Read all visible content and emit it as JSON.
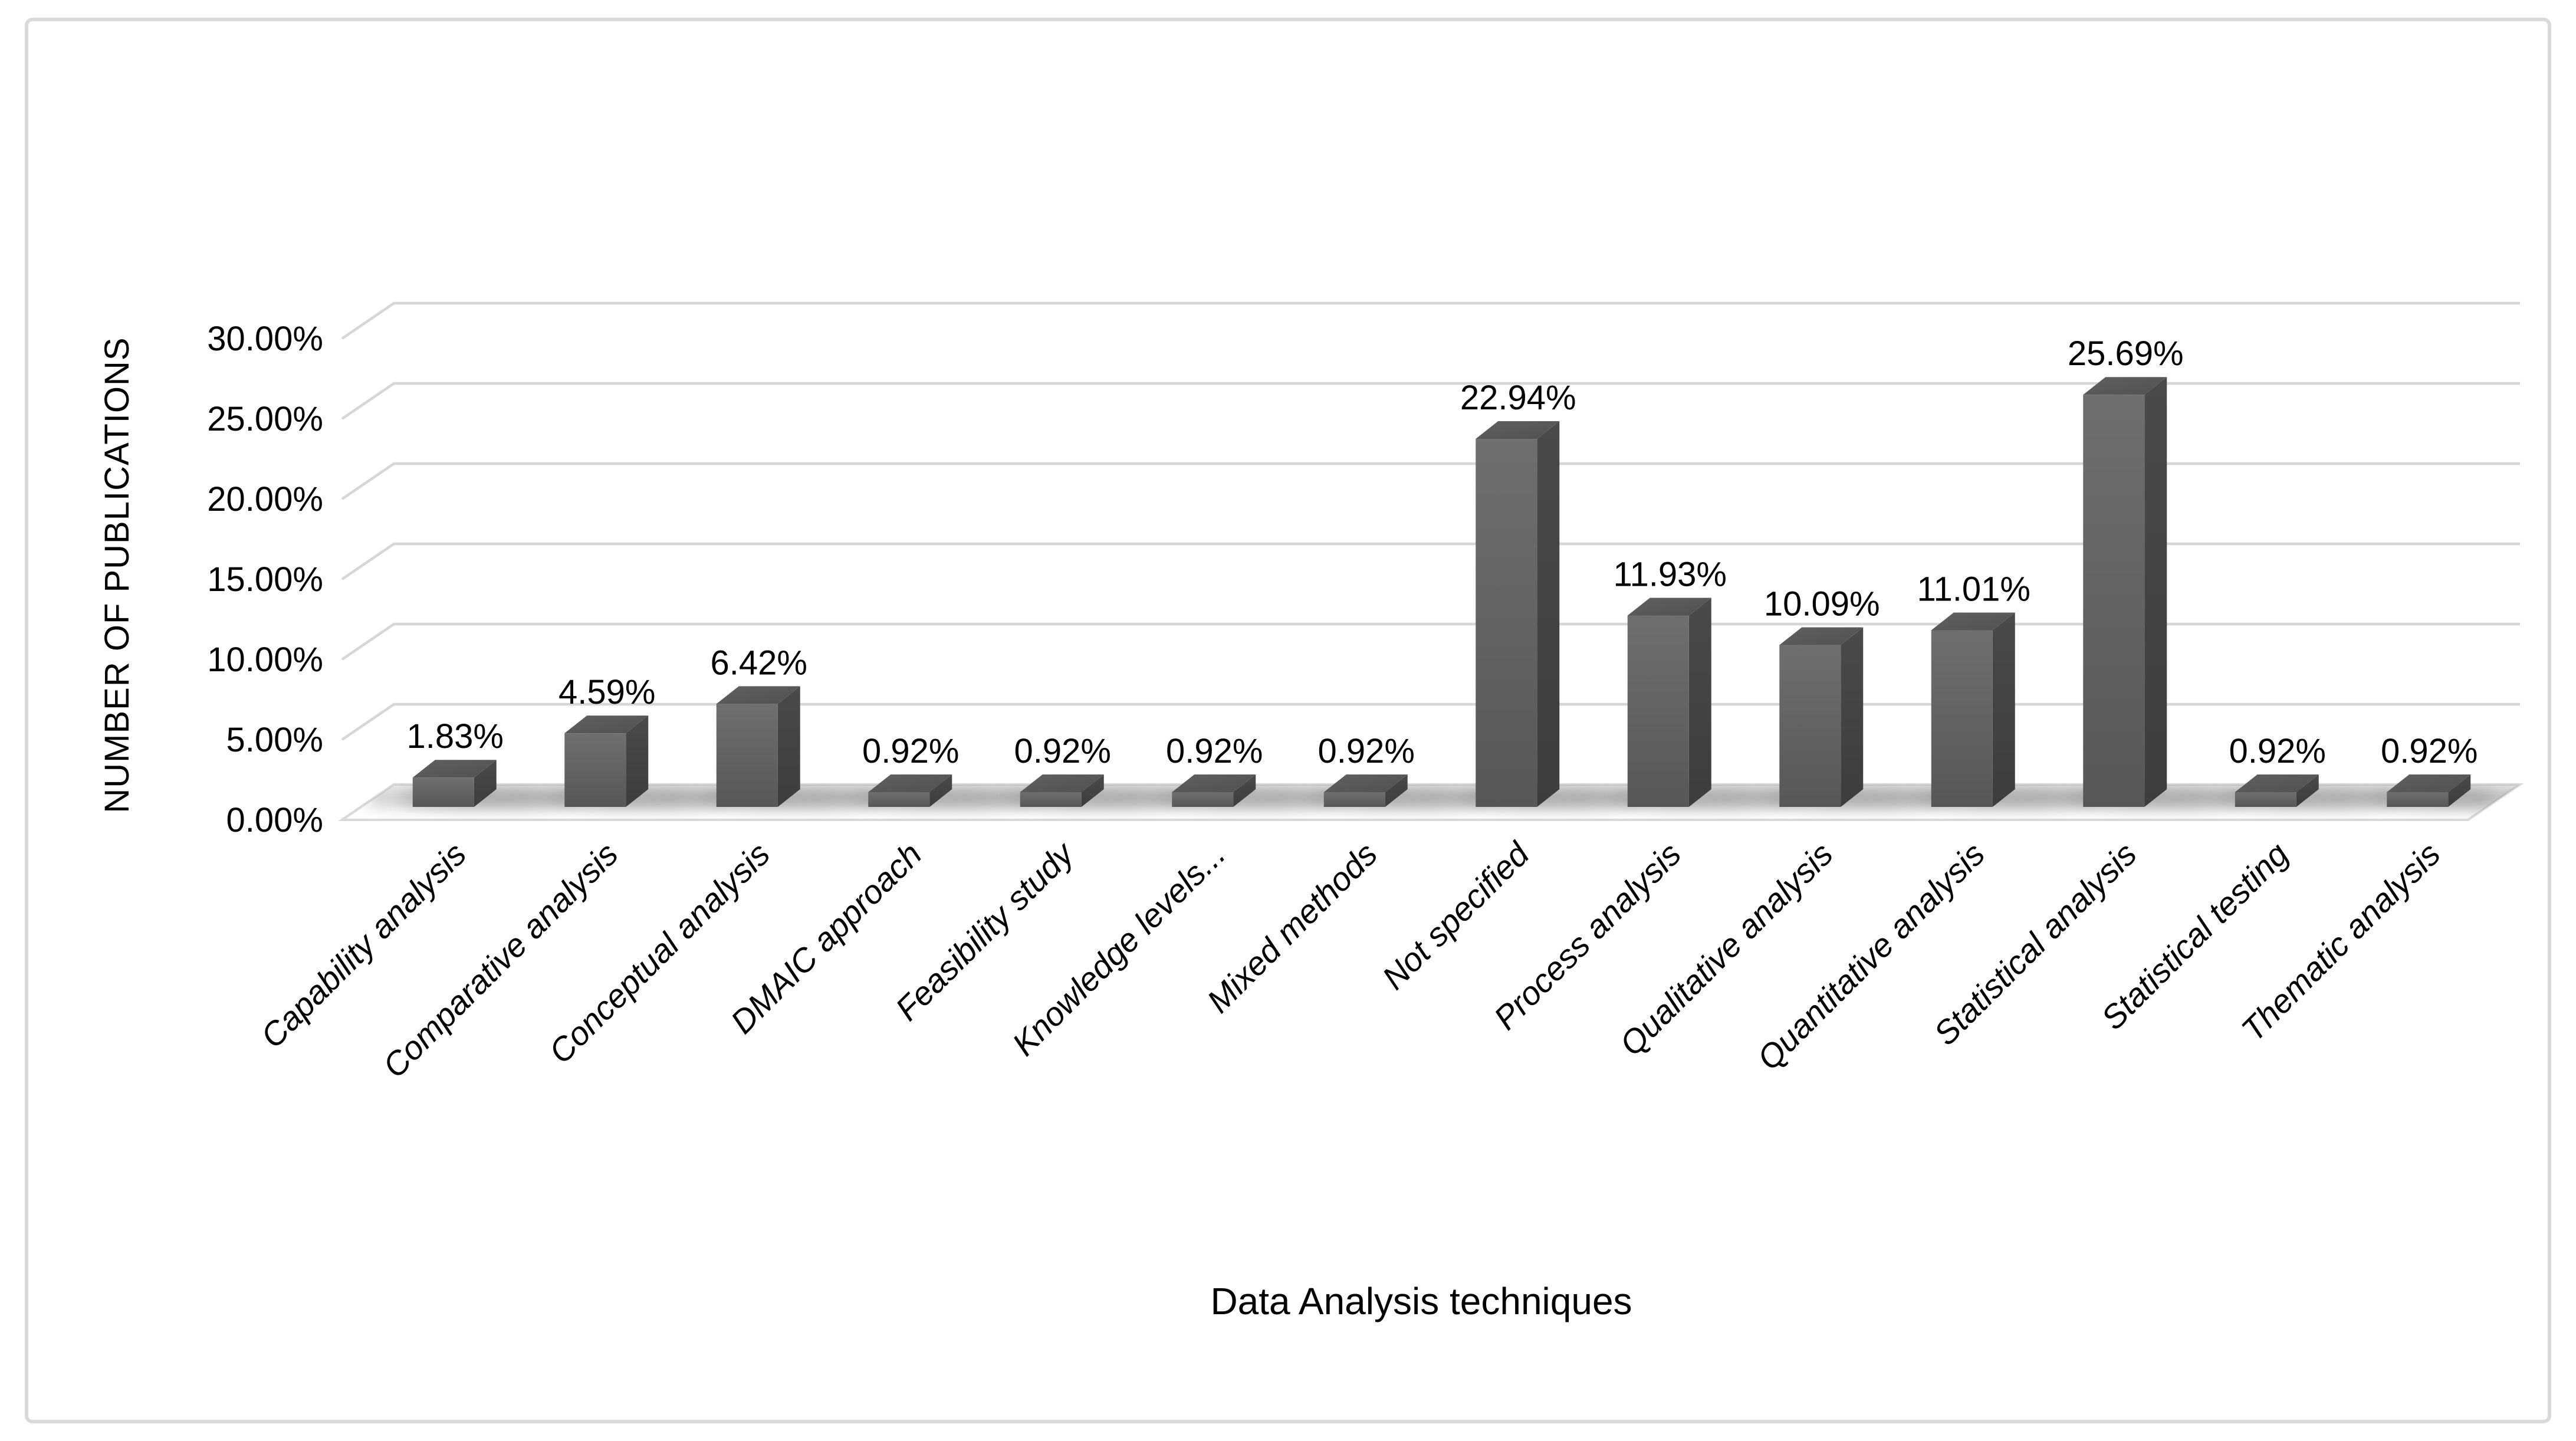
{
  "chart_data": {
    "type": "bar",
    "projection": "3d",
    "title": "",
    "xlabel": "Data Analysis techniques",
    "ylabel": "NUMBER OF PUBLICATIONS",
    "categories": [
      "Capability analysis",
      "Comparative analysis",
      "Conceptual analysis",
      "DMAIC approach",
      "Feasibility study",
      "Knowledge levels...",
      "Mixed methods",
      "Not specified",
      "Process analysis",
      "Qualitative analysis",
      "Quantitative analysis",
      "Statistical analysis",
      "Statistical testing",
      "Thematic analysis"
    ],
    "values": [
      1.83,
      4.59,
      6.42,
      0.92,
      0.92,
      0.92,
      0.92,
      22.94,
      11.93,
      10.09,
      11.01,
      25.69,
      0.92,
      0.92
    ],
    "data_labels": [
      "1.83%",
      "4.59%",
      "6.42%",
      "0.92%",
      "0.92%",
      "0.92%",
      "0.92%",
      "22.94%",
      "11.93%",
      "10.09%",
      "11.01%",
      "25.69%",
      "0.92%",
      "0.92%"
    ],
    "y_ticks": [
      "0.00%",
      "5.00%",
      "10.00%",
      "15.00%",
      "20.00%",
      "25.00%",
      "30.00%"
    ],
    "ylim": [
      0,
      30
    ],
    "y_step": 5,
    "grid": true,
    "legend": false,
    "colors": {
      "bar_front_light": "#6f6f6f",
      "bar_front_dark": "#575757",
      "bar_side_light": "#4a4a4a",
      "bar_side_dark": "#3d3d3d",
      "bar_top_light": "#606060",
      "bar_top_dark": "#525252",
      "gridline": "#d6d6d6",
      "frame_border": "#d9d9d9",
      "floor_back": "#f3f3f3",
      "floor_front": "#ffffff",
      "shadow": "#8c8c8c",
      "band_shadow": "#a8a8a8",
      "text": "#000000",
      "background": "#ffffff"
    }
  }
}
